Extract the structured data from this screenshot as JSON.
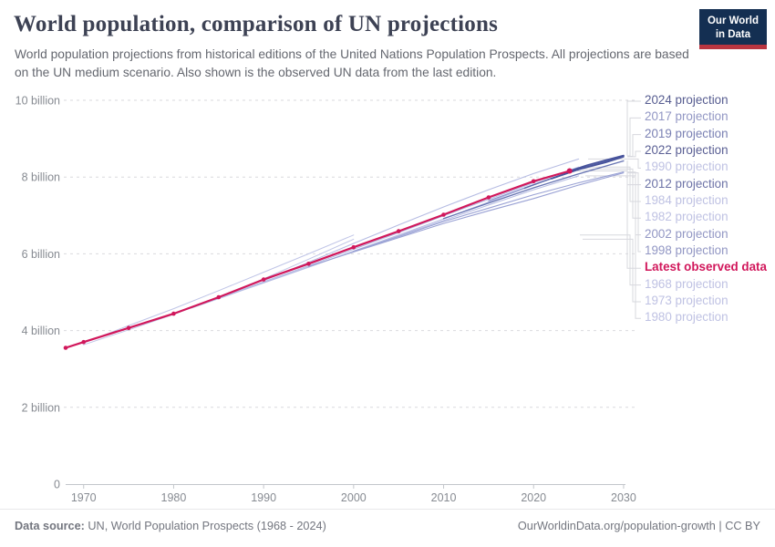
{
  "header": {
    "title": "World population, comparison of UN projections",
    "subtitle": "World population projections from historical editions of the United Nations Population Prospects. All projections are based on the UN medium scenario. Also shown is the observed UN data from the last edition.",
    "logo": {
      "line1": "Our World",
      "line2": "in Data",
      "bg_color": "#142f52",
      "accent_color": "#b93540"
    }
  },
  "footer": {
    "source_label": "Data source:",
    "source_text": "UN, World Population Prospects (1968 - 2024)",
    "link_text": "OurWorldinData.org/population-growth | CC BY"
  },
  "chart_data": {
    "type": "line",
    "title": "World population, comparison of UN projections",
    "xlabel": "",
    "ylabel": "",
    "x_range": [
      1968,
      2031.5
    ],
    "y_range": [
      0,
      10
    ],
    "grid": "dashed-horizontal",
    "legend_position": "right",
    "x_ticks": [
      1970,
      1980,
      1990,
      2000,
      2010,
      2020,
      2030
    ],
    "y_ticks": [
      {
        "value": 0,
        "label": "0"
      },
      {
        "value": 2,
        "label": "2 billion"
      },
      {
        "value": 4,
        "label": "4 billion"
      },
      {
        "value": 6,
        "label": "6 billion"
      },
      {
        "value": 8,
        "label": "8 billion"
      },
      {
        "value": 10,
        "label": "10 billion"
      }
    ],
    "axis_color": "#c3c6cb",
    "gridline_color": "#d9d9de",
    "connector_color": "#d7d8de",
    "tick_label_color": "#878b92",
    "series": [
      {
        "name": "2024 projection",
        "color": "#46529b",
        "label_color": "#565c90",
        "width": 1.7,
        "bold": false,
        "markers": false,
        "draw_order": 13,
        "points": [
          [
            2024,
            8.16
          ],
          [
            2026,
            8.31
          ],
          [
            2028,
            8.44
          ],
          [
            2030,
            8.56
          ]
        ]
      },
      {
        "name": "2017 projection",
        "color": "#8d96cd",
        "label_color": "#9297c4",
        "width": 1.2,
        "bold": false,
        "markers": false,
        "draw_order": 10,
        "points": [
          [
            2015,
            7.38
          ],
          [
            2020,
            7.8
          ],
          [
            2025,
            8.19
          ],
          [
            2030,
            8.55
          ]
        ]
      },
      {
        "name": "2019 projection",
        "color": "#5b67a8",
        "label_color": "#7a80b3",
        "width": 1.4,
        "bold": false,
        "markers": false,
        "draw_order": 11,
        "points": [
          [
            2019,
            7.71
          ],
          [
            2022,
            7.97
          ],
          [
            2025,
            8.21
          ],
          [
            2030,
            8.54
          ]
        ]
      },
      {
        "name": "2022 projection",
        "color": "#46529b",
        "label_color": "#5a5f94",
        "width": 1.7,
        "bold": false,
        "markers": false,
        "draw_order": 12,
        "points": [
          [
            2022,
            7.96
          ],
          [
            2025,
            8.2
          ],
          [
            2028,
            8.38
          ],
          [
            2030,
            8.53
          ]
        ]
      },
      {
        "name": "1990 projection",
        "color": "#b6bce3",
        "label_color": "#bfc2e3",
        "width": 1.1,
        "bold": false,
        "markers": false,
        "draw_order": 6,
        "points": [
          [
            1990,
            5.3
          ],
          [
            1995,
            5.78
          ],
          [
            2000,
            6.27
          ],
          [
            2005,
            6.75
          ],
          [
            2010,
            7.22
          ],
          [
            2015,
            7.67
          ],
          [
            2020,
            8.09
          ],
          [
            2025,
            8.47
          ]
        ]
      },
      {
        "name": "2012 projection",
        "color": "#6673b2",
        "label_color": "#6d73a7",
        "width": 1.3,
        "bold": false,
        "markers": false,
        "draw_order": 9,
        "points": [
          [
            2010,
            6.92
          ],
          [
            2015,
            7.32
          ],
          [
            2020,
            7.72
          ],
          [
            2025,
            8.08
          ],
          [
            2030,
            8.42
          ]
        ]
      },
      {
        "name": "1984 projection",
        "color": "#b6bce3",
        "label_color": "#bfc2e3",
        "width": 1.1,
        "bold": false,
        "markers": false,
        "draw_order": 5,
        "points": [
          [
            1984,
            4.76
          ],
          [
            1990,
            5.27
          ],
          [
            1995,
            5.69
          ],
          [
            2000,
            6.12
          ],
          [
            2005,
            6.55
          ],
          [
            2010,
            6.99
          ],
          [
            2015,
            7.42
          ],
          [
            2020,
            7.85
          ],
          [
            2025,
            8.26
          ]
        ]
      },
      {
        "name": "1982 projection",
        "color": "#b6bce3",
        "label_color": "#bfc2e3",
        "width": 1.1,
        "bold": false,
        "markers": false,
        "draw_order": 4,
        "points": [
          [
            1982,
            4.59
          ],
          [
            1990,
            5.24
          ],
          [
            1995,
            5.65
          ],
          [
            2000,
            6.07
          ],
          [
            2005,
            6.49
          ],
          [
            2010,
            6.91
          ],
          [
            2015,
            7.35
          ],
          [
            2020,
            7.79
          ],
          [
            2025,
            8.21
          ]
        ]
      },
      {
        "name": "2002 projection",
        "color": "#99a1d4",
        "label_color": "#9297c4",
        "width": 1.1,
        "bold": false,
        "markers": false,
        "draw_order": 8,
        "points": [
          [
            2000,
            6.07
          ],
          [
            2005,
            6.45
          ],
          [
            2010,
            6.84
          ],
          [
            2015,
            7.19
          ],
          [
            2020,
            7.54
          ],
          [
            2025,
            7.85
          ],
          [
            2030,
            8.13
          ]
        ]
      },
      {
        "name": "1998 projection",
        "color": "#99a1d4",
        "label_color": "#9297c4",
        "width": 1.1,
        "bold": false,
        "markers": false,
        "draw_order": 7,
        "points": [
          [
            1995,
            5.67
          ],
          [
            2000,
            6.05
          ],
          [
            2005,
            6.42
          ],
          [
            2010,
            6.79
          ],
          [
            2015,
            7.12
          ],
          [
            2020,
            7.44
          ],
          [
            2025,
            7.79
          ],
          [
            2030,
            8.11
          ]
        ]
      },
      {
        "name": "Latest observed data",
        "color": "#d1175b",
        "label_color": "#d1175b",
        "width": 2.2,
        "bold": true,
        "markers": true,
        "draw_order": 14,
        "points": [
          [
            1968,
            3.55
          ],
          [
            1970,
            3.7
          ],
          [
            1975,
            4.07
          ],
          [
            1980,
            4.44
          ],
          [
            1985,
            4.87
          ],
          [
            1990,
            5.33
          ],
          [
            1995,
            5.74
          ],
          [
            2000,
            6.17
          ],
          [
            2005,
            6.59
          ],
          [
            2010,
            7.02
          ],
          [
            2015,
            7.47
          ],
          [
            2020,
            7.89
          ],
          [
            2024,
            8.16
          ]
        ]
      },
      {
        "name": "1968 projection",
        "color": "#c0c5e7",
        "label_color": "#bfc2e3",
        "width": 1.0,
        "bold": false,
        "markers": false,
        "draw_order": 1,
        "points": [
          [
            1970,
            3.68
          ],
          [
            1975,
            4.13
          ],
          [
            1980,
            4.57
          ],
          [
            1985,
            5.04
          ],
          [
            1990,
            5.52
          ],
          [
            1995,
            6.0
          ],
          [
            2000,
            6.49
          ]
        ]
      },
      {
        "name": "1973 projection",
        "color": "#c0c5e7",
        "label_color": "#bfc2e3",
        "width": 1.0,
        "bold": false,
        "markers": false,
        "draw_order": 2,
        "points": [
          [
            1970,
            3.63
          ],
          [
            1975,
            4.02
          ],
          [
            1980,
            4.42
          ],
          [
            1985,
            4.87
          ],
          [
            1990,
            5.35
          ],
          [
            1995,
            5.86
          ],
          [
            2000,
            6.38
          ]
        ]
      },
      {
        "name": "1980 projection",
        "color": "#b6bce3",
        "label_color": "#bfc2e3",
        "width": 1.0,
        "bold": false,
        "markers": false,
        "draw_order": 3,
        "points": [
          [
            1980,
            4.43
          ],
          [
            1985,
            4.84
          ],
          [
            1990,
            5.25
          ],
          [
            1995,
            5.66
          ],
          [
            2000,
            6.06
          ],
          [
            2005,
            6.47
          ],
          [
            2010,
            6.87
          ],
          [
            2015,
            7.27
          ],
          [
            2020,
            7.67
          ],
          [
            2025,
            8.03
          ]
        ]
      }
    ]
  }
}
